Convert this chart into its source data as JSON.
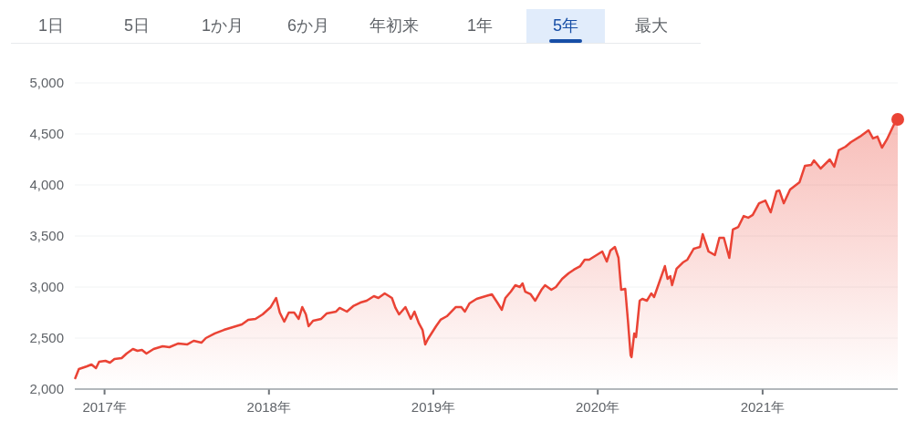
{
  "chart_data": {
    "type": "area",
    "color": "#ea4335",
    "annotations": [
      "1日",
      "5日",
      "1か月",
      "6か月",
      "年初来",
      "1年",
      "5年",
      "最大"
    ],
    "xlim": [
      "2016-10-27",
      "2021-10-28"
    ],
    "xticks": [
      {
        "value": "2017-01-01",
        "label": "2017年"
      },
      {
        "value": "2018-01-01",
        "label": "2018年"
      },
      {
        "value": "2019-01-01",
        "label": "2019年"
      },
      {
        "value": "2020-01-01",
        "label": "2020年"
      },
      {
        "value": "2021-01-01",
        "label": "2021年"
      }
    ],
    "ylim": [
      2000,
      5000
    ],
    "yticks": [
      {
        "value": 2000,
        "label": "2,000"
      },
      {
        "value": 2500,
        "label": "2,500"
      },
      {
        "value": 3000,
        "label": "3,000"
      },
      {
        "value": 3500,
        "label": "3,500"
      },
      {
        "value": 4000,
        "label": "4,000"
      },
      {
        "value": 4500,
        "label": "4,500"
      },
      {
        "value": 5000,
        "label": "5,000"
      }
    ],
    "grid": "y",
    "x": [
      "2016-10-28",
      "2016-11-05",
      "2016-11-23",
      "2016-12-03",
      "2016-12-13",
      "2016-12-20",
      "2017-01-03",
      "2017-01-13",
      "2017-01-23",
      "2017-02-08",
      "2017-02-19",
      "2017-03-05",
      "2017-03-15",
      "2017-03-25",
      "2017-04-04",
      "2017-04-20",
      "2017-05-10",
      "2017-05-25",
      "2017-06-14",
      "2017-07-04",
      "2017-07-18",
      "2017-08-04",
      "2017-08-14",
      "2017-09-03",
      "2017-09-23",
      "2017-10-13",
      "2017-11-02",
      "2017-11-16",
      "2017-12-02",
      "2017-12-18",
      "2018-01-05",
      "2018-01-17",
      "2018-01-25",
      "2018-02-04",
      "2018-02-14",
      "2018-02-26",
      "2018-03-08",
      "2018-03-16",
      "2018-03-24",
      "2018-03-30",
      "2018-04-09",
      "2018-04-27",
      "2018-05-09",
      "2018-05-30",
      "2018-06-07",
      "2018-06-23",
      "2018-07-07",
      "2018-07-23",
      "2018-08-06",
      "2018-08-22",
      "2018-09-01",
      "2018-09-15",
      "2018-10-01",
      "2018-10-09",
      "2018-10-17",
      "2018-10-31",
      "2018-11-12",
      "2018-11-20",
      "2018-11-30",
      "2018-12-08",
      "2018-12-14",
      "2018-12-20",
      "2019-01-07",
      "2019-01-17",
      "2019-01-31",
      "2019-02-20",
      "2019-03-04",
      "2019-03-12",
      "2019-03-22",
      "2019-04-07",
      "2019-04-27",
      "2019-05-11",
      "2019-05-23",
      "2019-06-02",
      "2019-06-10",
      "2019-06-22",
      "2019-07-02",
      "2019-07-12",
      "2019-07-18",
      "2019-07-24",
      "2019-08-05",
      "2019-08-15",
      "2019-08-29",
      "2019-09-06",
      "2019-09-20",
      "2019-09-30",
      "2019-10-14",
      "2019-10-28",
      "2019-11-09",
      "2019-11-23",
      "2019-12-03",
      "2019-12-13",
      "2020-01-11",
      "2020-01-21",
      "2020-01-29",
      "2020-02-08",
      "2020-02-16",
      "2020-02-22",
      "2020-03-02",
      "2020-03-08",
      "2020-03-14",
      "2020-03-16",
      "2020-03-22",
      "2020-03-26",
      "2020-04-03",
      "2020-04-09",
      "2020-04-19",
      "2020-04-29",
      "2020-05-05",
      "2020-05-15",
      "2020-05-29",
      "2020-06-04",
      "2020-06-10",
      "2020-06-14",
      "2020-06-24",
      "2020-07-08",
      "2020-07-18",
      "2020-08-01",
      "2020-08-15",
      "2020-08-21",
      "2020-09-03",
      "2020-09-17",
      "2020-09-27",
      "2020-10-07",
      "2020-10-19",
      "2020-10-27",
      "2020-11-08",
      "2020-11-20",
      "2020-11-30",
      "2020-12-10",
      "2020-12-24",
      "2021-01-07",
      "2021-01-19",
      "2021-02-01",
      "2021-02-07",
      "2021-02-17",
      "2021-03-03",
      "2021-03-24",
      "2021-04-05",
      "2021-04-19",
      "2021-04-25",
      "2021-05-10",
      "2021-05-30",
      "2021-06-09",
      "2021-06-19",
      "2021-07-04",
      "2021-07-16",
      "2021-08-05",
      "2021-08-24",
      "2021-09-03",
      "2021-09-13",
      "2021-09-23",
      "2021-10-04",
      "2021-10-24",
      "2021-10-28"
    ],
    "values": [
      2107,
      2196,
      2223,
      2241,
      2205,
      2268,
      2277,
      2259,
      2295,
      2304,
      2348,
      2393,
      2375,
      2384,
      2348,
      2393,
      2420,
      2411,
      2447,
      2438,
      2473,
      2455,
      2500,
      2545,
      2580,
      2607,
      2634,
      2679,
      2688,
      2732,
      2804,
      2893,
      2750,
      2661,
      2750,
      2750,
      2688,
      2804,
      2732,
      2616,
      2670,
      2688,
      2741,
      2759,
      2795,
      2759,
      2813,
      2848,
      2866,
      2911,
      2893,
      2938,
      2893,
      2795,
      2732,
      2804,
      2688,
      2759,
      2643,
      2580,
      2438,
      2491,
      2616,
      2679,
      2714,
      2804,
      2804,
      2759,
      2839,
      2884,
      2911,
      2929,
      2848,
      2777,
      2893,
      2955,
      3018,
      3000,
      3036,
      2955,
      2929,
      2866,
      2973,
      3018,
      2973,
      3000,
      3080,
      3134,
      3170,
      3205,
      3268,
      3268,
      3348,
      3250,
      3357,
      3393,
      3286,
      2973,
      2982,
      2670,
      2330,
      2313,
      2545,
      2509,
      2866,
      2884,
      2866,
      2938,
      2902,
      3027,
      3205,
      3080,
      3107,
      3018,
      3179,
      3241,
      3268,
      3375,
      3393,
      3518,
      3348,
      3313,
      3482,
      3482,
      3286,
      3563,
      3589,
      3696,
      3679,
      3706,
      3821,
      3848,
      3732,
      3938,
      3947,
      3821,
      3955,
      4027,
      4188,
      4197,
      4241,
      4161,
      4250,
      4179,
      4340,
      4375,
      4420,
      4474,
      4536,
      4456,
      4474,
      4366,
      4447,
      4634,
      4643
    ]
  }
}
